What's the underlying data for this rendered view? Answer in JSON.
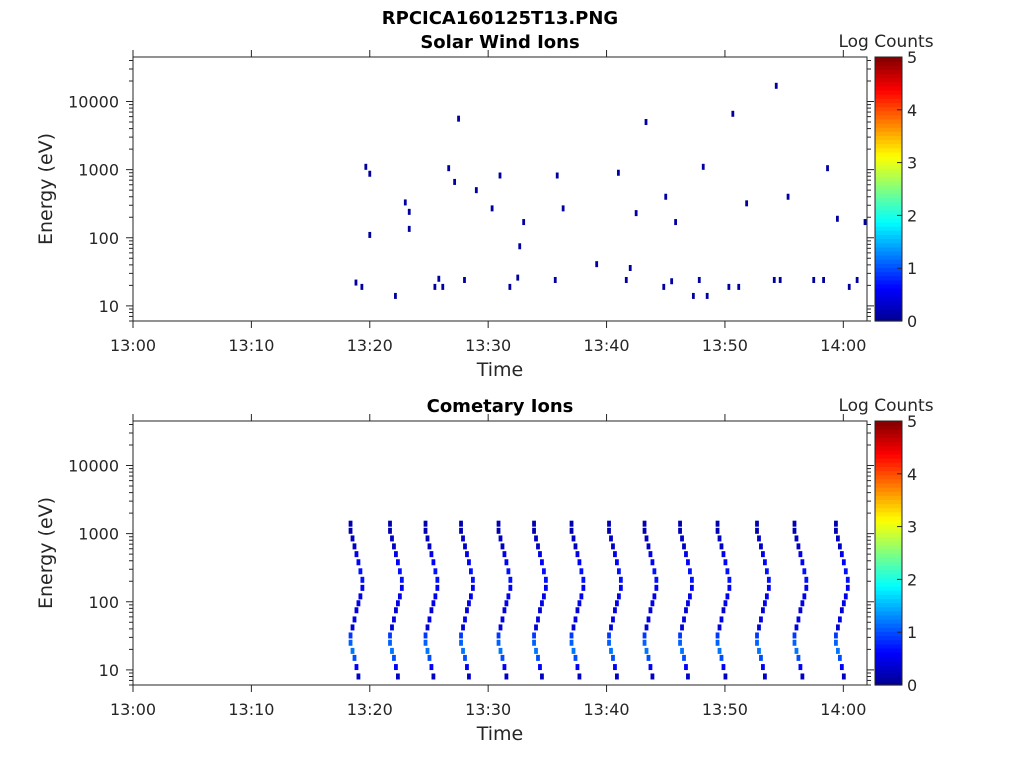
{
  "figure_title": "RPCICA160125T13.PNG",
  "colors": {
    "colormap": [
      "#00008F",
      "#0000FF",
      "#0080FF",
      "#00FFFF",
      "#80FF80",
      "#FFFF00",
      "#FF8000",
      "#FF0000",
      "#800000"
    ]
  },
  "chart_data": [
    {
      "type": "heatmap",
      "title": "Solar Wind Ions",
      "xlabel": "Time",
      "ylabel": "Energy (eV)",
      "y_scale": "log",
      "xlim": [
        "13:00",
        "14:02"
      ],
      "ylim": [
        6,
        45000
      ],
      "x_ticks": [
        "13:00",
        "13:10",
        "13:20",
        "13:30",
        "13:40",
        "13:50",
        "14:00"
      ],
      "y_ticks": [
        10,
        100,
        1000,
        10000
      ],
      "y_tick_labels": [
        "10",
        "100",
        "1000",
        "10000"
      ],
      "colorbar": {
        "label": "Log Counts",
        "range": [
          0,
          5
        ],
        "ticks": [
          "0",
          "1",
          "2",
          "3",
          "4",
          "5"
        ]
      },
      "points": [
        [
          "13:18:50",
          22,
          0.1
        ],
        [
          "13:19:20",
          19,
          0.1
        ],
        [
          "13:19:40",
          1100,
          0.1
        ],
        [
          "13:20:00",
          870,
          0.1
        ],
        [
          "13:20:00",
          110,
          0.1
        ],
        [
          "13:22:10",
          14,
          0.1
        ],
        [
          "13:23:00",
          330,
          0.1
        ],
        [
          "13:23:20",
          240,
          0.1
        ],
        [
          "13:23:20",
          135,
          0.1
        ],
        [
          "13:25:30",
          19,
          0.1
        ],
        [
          "13:25:50",
          25,
          0.1
        ],
        [
          "13:26:10",
          19,
          0.1
        ],
        [
          "13:26:40",
          1050,
          0.1
        ],
        [
          "13:27:10",
          660,
          0.1
        ],
        [
          "13:27:30",
          5600,
          0.1
        ],
        [
          "13:28:00",
          24,
          0.1
        ],
        [
          "13:29:00",
          500,
          0.1
        ],
        [
          "13:30:20",
          270,
          0.1
        ],
        [
          "13:31:00",
          820,
          0.1
        ],
        [
          "13:31:50",
          19,
          0.1
        ],
        [
          "13:32:30",
          26,
          0.1
        ],
        [
          "13:32:40",
          75,
          0.1
        ],
        [
          "13:33:00",
          170,
          0.1
        ],
        [
          "13:35:40",
          24,
          0.1
        ],
        [
          "13:35:50",
          820,
          0.1
        ],
        [
          "13:36:20",
          270,
          0.1
        ],
        [
          "13:39:10",
          41,
          0.1
        ],
        [
          "13:41:00",
          900,
          0.1
        ],
        [
          "13:41:40",
          24,
          0.1
        ],
        [
          "13:42:00",
          36,
          0.1
        ],
        [
          "13:42:30",
          230,
          0.1
        ],
        [
          "13:43:20",
          5000,
          0.1
        ],
        [
          "13:44:50",
          19,
          0.1
        ],
        [
          "13:45:00",
          400,
          0.1
        ],
        [
          "13:45:30",
          23,
          0.1
        ],
        [
          "13:45:50",
          170,
          0.1
        ],
        [
          "13:47:20",
          14,
          0.1
        ],
        [
          "13:47:50",
          24,
          0.1
        ],
        [
          "13:48:10",
          1100,
          0.1
        ],
        [
          "13:48:30",
          14,
          0.1
        ],
        [
          "13:50:20",
          19,
          0.1
        ],
        [
          "13:50:40",
          6600,
          0.1
        ],
        [
          "13:51:10",
          19,
          0.1
        ],
        [
          "13:51:50",
          320,
          0.1
        ],
        [
          "13:54:10",
          24,
          0.1
        ],
        [
          "13:54:20",
          17000,
          0.1
        ],
        [
          "13:54:40",
          24,
          0.1
        ],
        [
          "13:55:20",
          400,
          0.1
        ],
        [
          "13:57:30",
          24,
          0.1
        ],
        [
          "13:58:20",
          24,
          0.1
        ],
        [
          "13:58:40",
          1050,
          0.1
        ],
        [
          "13:59:30",
          190,
          0.1
        ],
        [
          "14:00:30",
          19,
          0.1
        ],
        [
          "14:01:10",
          24,
          0.1
        ],
        [
          "14:01:50",
          170,
          0.1
        ]
      ]
    },
    {
      "type": "heatmap",
      "title": "Cometary Ions",
      "xlabel": "Time",
      "ylabel": "Energy (eV)",
      "y_scale": "log",
      "xlim": [
        "13:00",
        "14:02"
      ],
      "ylim": [
        6,
        45000
      ],
      "x_ticks": [
        "13:00",
        "13:10",
        "13:20",
        "13:30",
        "13:40",
        "13:50",
        "14:00"
      ],
      "y_ticks": [
        10,
        100,
        1000,
        10000
      ],
      "y_tick_labels": [
        "10",
        "100",
        "1000",
        "10000"
      ],
      "colorbar": {
        "label": "Log Counts",
        "range": [
          0,
          5
        ],
        "ticks": [
          "0",
          "1",
          "2",
          "3",
          "4",
          "5"
        ]
      },
      "sweep_start_times": [
        "13:18:20",
        "13:21:40",
        "13:24:40",
        "13:27:40",
        "13:30:50",
        "13:33:50",
        "13:37:00",
        "13:40:10",
        "13:43:10",
        "13:46:10",
        "13:49:20",
        "13:52:40",
        "13:55:50",
        "13:59:20"
      ],
      "sweep_profile": {
        "energies": [
          1400,
          1100,
          850,
          650,
          500,
          380,
          280,
          210,
          160,
          120,
          95,
          75,
          55,
          42,
          32,
          25,
          19,
          15,
          11,
          8
        ],
        "time_offsets_s": [
          0,
          0,
          10,
          20,
          30,
          40,
          50,
          60,
          60,
          50,
          40,
          30,
          20,
          10,
          0,
          0,
          10,
          20,
          30,
          40
        ],
        "log_counts": [
          0.2,
          0.2,
          0.3,
          0.3,
          0.5,
          0.6,
          0.7,
          0.7,
          0.6,
          0.5,
          0.5,
          0.4,
          0.5,
          0.4,
          0.9,
          1.1,
          1.2,
          1.0,
          0.6,
          0.3
        ]
      }
    }
  ]
}
